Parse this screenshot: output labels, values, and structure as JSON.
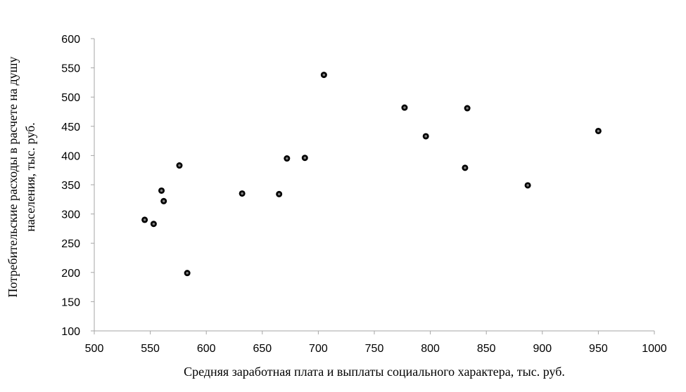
{
  "chart_data": {
    "type": "scatter",
    "title": "",
    "xlabel": "Средняя заработная плата и выплаты социального характера,  тыс. руб.",
    "ylabel_lines": [
      "Потребительские расходы  в расчете на душу",
      "населения,  тыс. руб."
    ],
    "xlim": [
      500,
      1000
    ],
    "ylim": [
      100,
      600
    ],
    "x_ticks": [
      "500",
      "550",
      "600",
      "650",
      "700",
      "750",
      "800",
      "850",
      "900",
      "950",
      "1000"
    ],
    "y_ticks": [
      "100",
      "150",
      "200",
      "250",
      "300",
      "350",
      "400",
      "450",
      "500",
      "550",
      "600"
    ],
    "grid": false,
    "legend": "none",
    "marker_color": "#000000",
    "points": [
      {
        "x": 545,
        "y": 290
      },
      {
        "x": 553,
        "y": 283
      },
      {
        "x": 560,
        "y": 340
      },
      {
        "x": 562,
        "y": 322
      },
      {
        "x": 576,
        "y": 383
      },
      {
        "x": 583,
        "y": 199
      },
      {
        "x": 632,
        "y": 335
      },
      {
        "x": 665,
        "y": 334
      },
      {
        "x": 672,
        "y": 395
      },
      {
        "x": 688,
        "y": 396
      },
      {
        "x": 705,
        "y": 538
      },
      {
        "x": 777,
        "y": 482
      },
      {
        "x": 796,
        "y": 433
      },
      {
        "x": 831,
        "y": 379
      },
      {
        "x": 833,
        "y": 481
      },
      {
        "x": 887,
        "y": 349
      },
      {
        "x": 950,
        "y": 442
      }
    ]
  }
}
